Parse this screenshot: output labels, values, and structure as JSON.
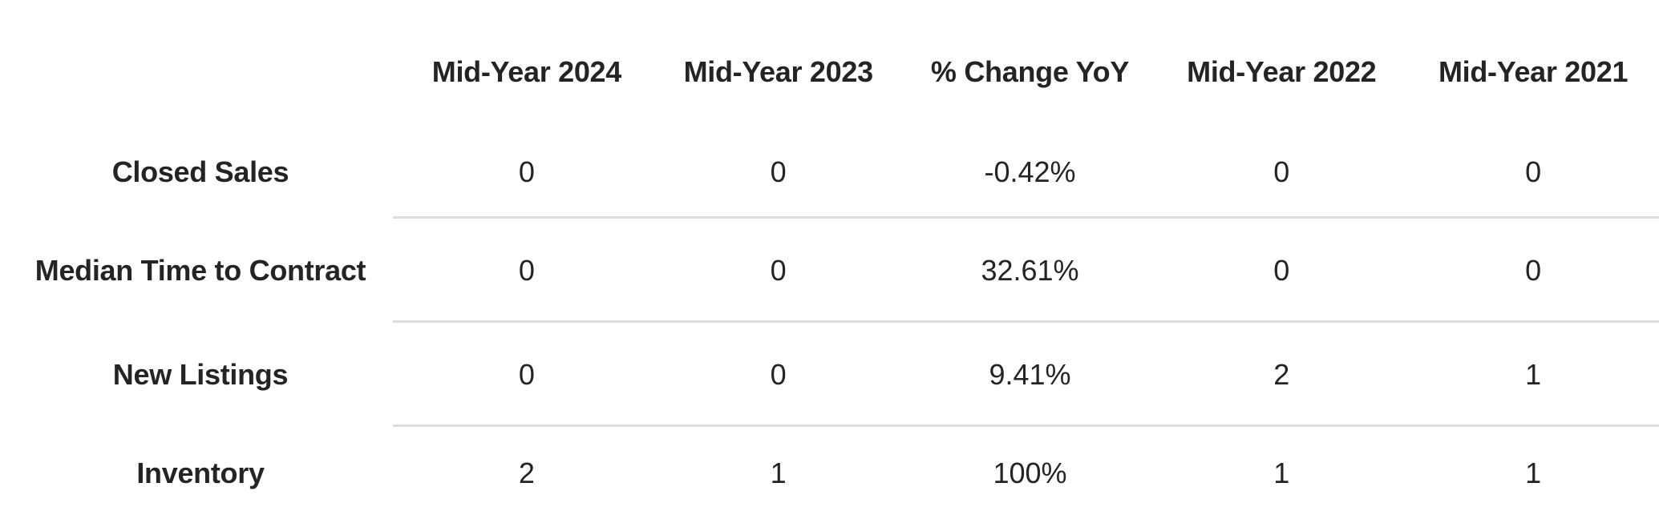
{
  "table": {
    "corner_label": "",
    "columns": [
      "Mid-Year 2024",
      "Mid-Year 2023",
      "% Change YoY",
      "Mid-Year 2022",
      "Mid-Year 2021"
    ],
    "rows": [
      {
        "label": "Closed Sales",
        "values": [
          "0",
          "0",
          "-0.42%",
          "0",
          "0"
        ]
      },
      {
        "label": "Median Time to Contract",
        "values": [
          "0",
          "0",
          "32.61%",
          "0",
          "0"
        ]
      },
      {
        "label": "New Listings",
        "values": [
          "0",
          "0",
          "9.41%",
          "2",
          "1"
        ]
      },
      {
        "label": "Inventory",
        "values": [
          "2",
          "1",
          "100%",
          "1",
          "1"
        ]
      }
    ]
  },
  "chart_data": {
    "type": "table",
    "title": "",
    "categories": [
      "Mid-Year 2024",
      "Mid-Year 2023",
      "% Change YoY",
      "Mid-Year 2022",
      "Mid-Year 2021"
    ],
    "series": [
      {
        "name": "Closed Sales",
        "values": [
          "0",
          "0",
          "-0.42%",
          "0",
          "0"
        ]
      },
      {
        "name": "Median Time to Contract",
        "values": [
          "0",
          "0",
          "32.61%",
          "0",
          "0"
        ]
      },
      {
        "name": "New Listings",
        "values": [
          "0",
          "0",
          "9.41%",
          "2",
          "1"
        ]
      },
      {
        "name": "Inventory",
        "values": [
          "2",
          "1",
          "100%",
          "1",
          "1"
        ]
      }
    ],
    "layout_hints": {
      "grid": "horizontal dividers between data rows only, starting after label column",
      "label_column_alignment": "center",
      "value_alignment": "center"
    }
  },
  "colors": {
    "text": "#242424",
    "divider": "#dcdcdc",
    "background": "#ffffff"
  }
}
